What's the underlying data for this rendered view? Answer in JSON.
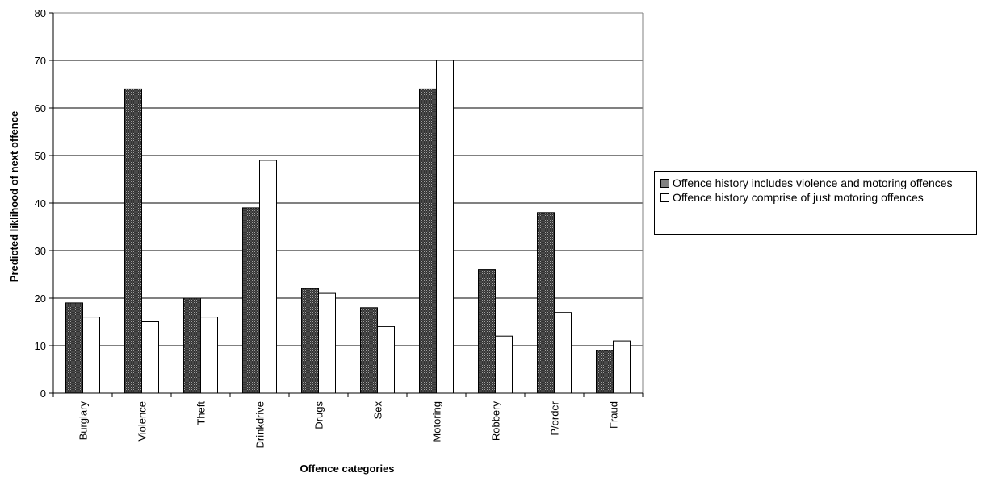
{
  "chart_data": {
    "type": "bar",
    "xlabel": "Offence categories",
    "ylabel": "Predicted liklihood of next offence",
    "ylim": [
      0,
      80
    ],
    "yticks": [
      0,
      10,
      20,
      30,
      40,
      50,
      60,
      70,
      80
    ],
    "grid": true,
    "legend_position": "right",
    "categories": [
      "Burglary",
      "Violence",
      "Theft",
      "Drinkdrive",
      "Drugs",
      "Sex",
      "Motoring",
      "Robbery",
      "P/order",
      "Fraud"
    ],
    "series": [
      {
        "name": "Offence history includes violence and motoring offences",
        "values": [
          19,
          64,
          20,
          39,
          22,
          18,
          64,
          26,
          38,
          9
        ],
        "fill": "#3a3a3a"
      },
      {
        "name": "Offence history comprise of just motoring offences",
        "values": [
          16,
          15,
          16,
          49,
          21,
          14,
          70,
          12,
          17,
          11
        ],
        "fill": "#ffffff"
      }
    ]
  }
}
